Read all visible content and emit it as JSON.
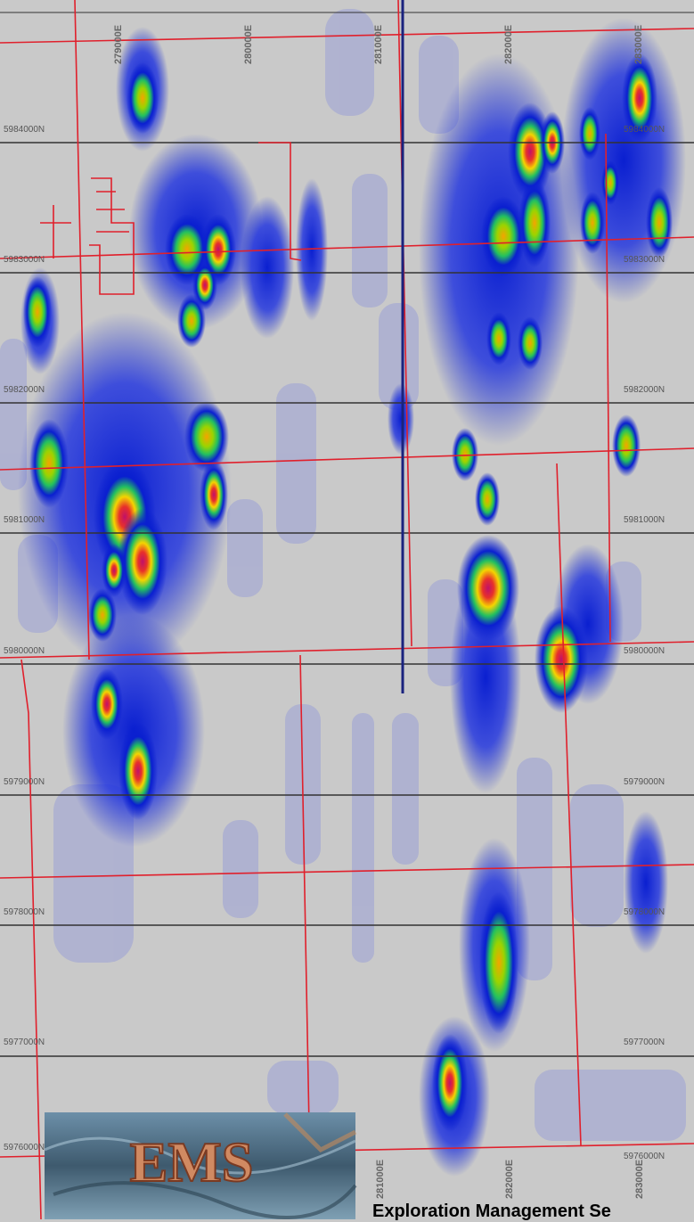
{
  "map": {
    "easting_labels": [
      "279000E",
      "280000E",
      "281000E",
      "282000E",
      "283000E"
    ],
    "easting_labels_bottom": [
      "281000E",
      "282000E",
      "283000E"
    ],
    "northing_labels_left": [
      "5984000N",
      "5983000N",
      "5982000N",
      "5981000N",
      "5980000N",
      "5979000N",
      "5978000N",
      "5977000N",
      "5976000N"
    ],
    "northing_labels_right": [
      "5984000N",
      "5983000N",
      "5982000N",
      "5981000N",
      "5980000N",
      "5979000N",
      "5978000N",
      "5977000N",
      "5976000N"
    ],
    "colors": {
      "background": "#c9c9c9",
      "grid_line": "#333333",
      "road_line": "#e0202c",
      "survey_line": "#1a237e",
      "anomaly_low": "#8a8fcf",
      "anomaly_mid": "#0a1fd0",
      "anomaly_high": "#22c060",
      "anomaly_peak": "#e8312a"
    }
  },
  "logo": {
    "text": "EMS"
  },
  "caption": "Exploration Management Se"
}
